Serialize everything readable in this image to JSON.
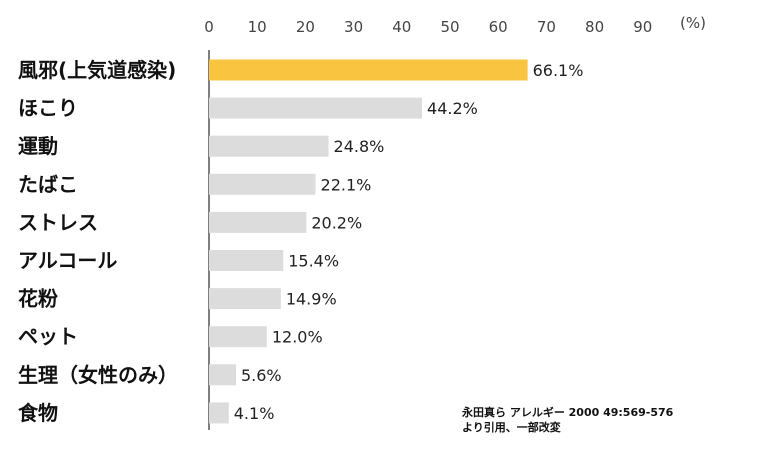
{
  "chart_data": {
    "type": "bar",
    "orientation": "horizontal",
    "unit": "(%)",
    "xlim": [
      0,
      90
    ],
    "xticks": [
      "0",
      "10",
      "20",
      "30",
      "40",
      "50",
      "60",
      "70",
      "80",
      "90"
    ],
    "categories": [
      "風邪(上気道感染)",
      "ほこり",
      "運動",
      "たばこ",
      "ストレス",
      "アルコール",
      "花粉",
      "ペット",
      "生理（女性のみ）",
      "食物"
    ],
    "values": [
      66.1,
      44.2,
      24.8,
      22.1,
      20.2,
      15.4,
      14.9,
      12.0,
      5.6,
      4.1
    ],
    "value_labels": [
      "66.1%",
      "44.2%",
      "24.8%",
      "22.1%",
      "20.2%",
      "15.4%",
      "14.9%",
      "12.0%",
      "5.6%",
      "4.1%"
    ],
    "highlight_index": 0,
    "colors": {
      "highlight": "#F9C440",
      "default": "#DCDCDC",
      "axis": "#555555"
    },
    "legend": "none",
    "grid": false
  },
  "source_note": {
    "line1": "永田真ら アレルギー 2000 49:569-576",
    "line2": "より引用、一部改変"
  }
}
